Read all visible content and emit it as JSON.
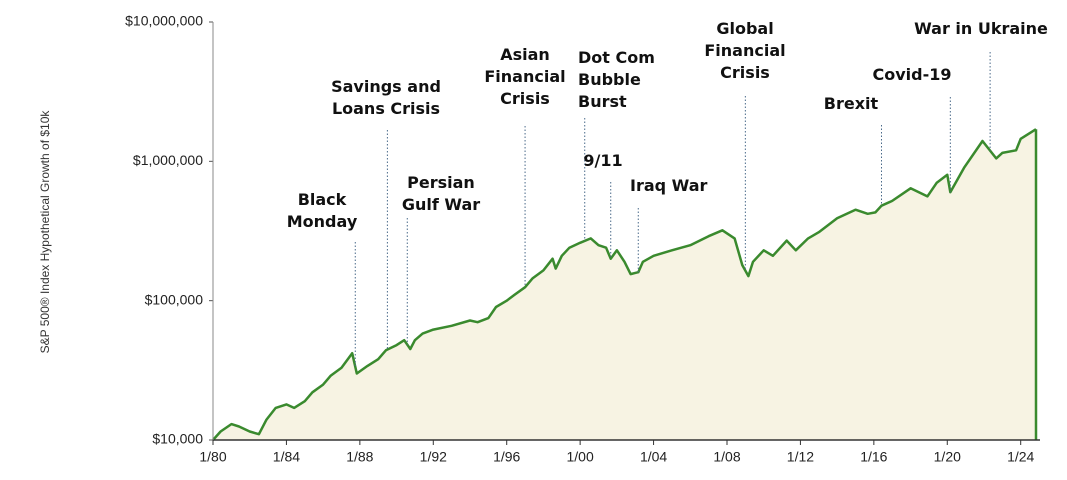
{
  "chart_data": {
    "type": "area",
    "y_label": "S&P 500® Index Hypothetical Growth of $10k",
    "log_y": true,
    "xlim": [
      "1980-01",
      "2024-11"
    ],
    "ylim": [
      10000,
      10000000
    ],
    "yticks": [
      {
        "value": 10000,
        "label": "$10,000"
      },
      {
        "value": 100000,
        "label": "$100,000"
      },
      {
        "value": 1000000,
        "label": "$1,000,000"
      },
      {
        "value": 10000000,
        "label": "$10,000,000"
      }
    ],
    "xticks": [
      {
        "value": "1980-01",
        "label": "1/80"
      },
      {
        "value": "1984-01",
        "label": "1/84"
      },
      {
        "value": "1988-01",
        "label": "1/88"
      },
      {
        "value": "1992-01",
        "label": "1/92"
      },
      {
        "value": "1996-01",
        "label": "1/96"
      },
      {
        "value": "2000-01",
        "label": "1/00"
      },
      {
        "value": "2004-01",
        "label": "1/04"
      },
      {
        "value": "2008-01",
        "label": "1/08"
      },
      {
        "value": "2012-01",
        "label": "1/12"
      },
      {
        "value": "2016-01",
        "label": "1/16"
      },
      {
        "value": "2020-01",
        "label": "1/20"
      },
      {
        "value": "2024-01",
        "label": "1/24"
      }
    ],
    "x": [
      "1980-01",
      "1980-06",
      "1981-01",
      "1981-06",
      "1982-01",
      "1982-07",
      "1982-12",
      "1983-06",
      "1984-01",
      "1984-06",
      "1985-01",
      "1985-06",
      "1986-01",
      "1986-06",
      "1987-01",
      "1987-08",
      "1987-11",
      "1988-06",
      "1989-01",
      "1989-06",
      "1990-01",
      "1990-06",
      "1990-10",
      "1991-01",
      "1991-06",
      "1992-01",
      "1993-01",
      "1994-01",
      "1994-06",
      "1995-01",
      "1995-06",
      "1996-01",
      "1996-06",
      "1997-01",
      "1997-06",
      "1998-01",
      "1998-07",
      "1998-09",
      "1999-01",
      "1999-06",
      "2000-01",
      "2000-08",
      "2001-01",
      "2001-06",
      "2001-09",
      "2002-01",
      "2002-06",
      "2002-10",
      "2003-03",
      "2003-06",
      "2004-01",
      "2005-01",
      "2006-01",
      "2007-01",
      "2007-10",
      "2008-06",
      "2008-11",
      "2009-03",
      "2009-06",
      "2010-01",
      "2010-07",
      "2011-04",
      "2011-10",
      "2012-06",
      "2013-01",
      "2014-01",
      "2015-01",
      "2015-09",
      "2016-02",
      "2016-06",
      "2017-01",
      "2018-01",
      "2018-12",
      "2019-06",
      "2020-01",
      "2020-03",
      "2020-12",
      "2021-12",
      "2022-09",
      "2023-01",
      "2023-10",
      "2024-01",
      "2024-11"
    ],
    "series": [
      {
        "color": "#3a8a2e",
        "fill": "#f7f3e3",
        "values": [
          10000,
          11500,
          13000,
          12500,
          11500,
          11000,
          14000,
          17000,
          18000,
          17000,
          19000,
          22000,
          25000,
          29000,
          33000,
          42000,
          30000,
          34000,
          38000,
          44000,
          48000,
          52000,
          45000,
          52000,
          58000,
          62000,
          66000,
          72000,
          70000,
          75000,
          90000,
          100000,
          110000,
          125000,
          145000,
          165000,
          200000,
          170000,
          210000,
          240000,
          260000,
          280000,
          250000,
          240000,
          200000,
          230000,
          190000,
          155000,
          160000,
          190000,
          210000,
          230000,
          250000,
          290000,
          320000,
          280000,
          180000,
          150000,
          190000,
          230000,
          210000,
          270000,
          230000,
          280000,
          310000,
          390000,
          450000,
          420000,
          430000,
          480000,
          520000,
          640000,
          560000,
          700000,
          800000,
          600000,
          900000,
          1400000,
          1050000,
          1150000,
          1200000,
          1450000,
          1700000
        ]
      }
    ],
    "annotations": [
      {
        "label": [
          "Black",
          "Monday"
        ],
        "x": "1987-10"
      },
      {
        "label": [
          "Savings and",
          "Loans Crisis"
        ],
        "x": "1989-07"
      },
      {
        "label": [
          "Persian",
          "Gulf War"
        ],
        "x": "1990-08"
      },
      {
        "label": [
          "Asian",
          "Financial",
          "Crisis"
        ],
        "x": "1997-01"
      },
      {
        "label": [
          "Dot Com",
          "Bubble",
          "Burst"
        ],
        "x": "2000-04"
      },
      {
        "label": [
          "9/11"
        ],
        "x": "2001-09"
      },
      {
        "label": [
          "Iraq War"
        ],
        "x": "2003-03"
      },
      {
        "label": [
          "Global",
          "Financial",
          "Crisis"
        ],
        "x": "2009-01"
      },
      {
        "label": [
          "Brexit"
        ],
        "x": "2016-06"
      },
      {
        "label": [
          "Covid-19"
        ],
        "x": "2020-03"
      },
      {
        "label": [
          "War in Ukraine"
        ],
        "x": "2022-05"
      }
    ]
  }
}
